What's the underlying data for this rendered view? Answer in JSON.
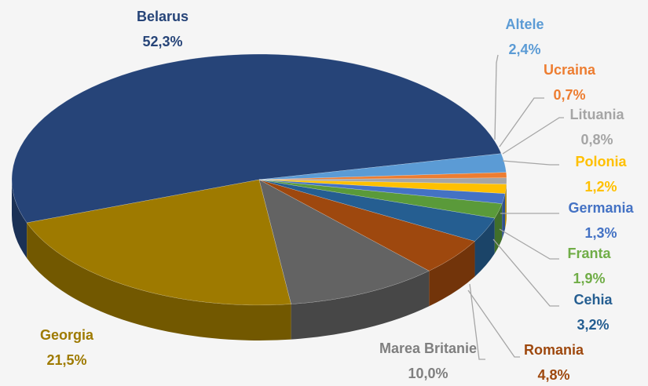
{
  "chart_data": {
    "type": "pie",
    "categories": [
      "Belarus",
      "Georgia",
      "Marea Britanie",
      "Romania",
      "Cehia",
      "Franta",
      "Germania",
      "Polonia",
      "Lituania",
      "Ucraina",
      "Altele"
    ],
    "values": [
      52.3,
      21.5,
      10.0,
      4.8,
      3.2,
      1.9,
      1.3,
      1.2,
      0.8,
      0.7,
      2.4
    ],
    "value_labels": [
      "52,3%",
      "21,5%",
      "10,0%",
      "4,8%",
      "3,2%",
      "1,9%",
      "1,3%",
      "1,2%",
      "0,8%",
      "0,7%",
      "2,4%"
    ],
    "colors": [
      "#264478",
      "#9e7a00",
      "#636363",
      "#9e480e",
      "#255e91",
      "#5a9a3a",
      "#4472c4",
      "#ffc000",
      "#a5a5a5",
      "#ed7d31",
      "#5b9bd5"
    ],
    "label_colors": [
      "#264478",
      "#9e7a00",
      "#7f7f7f",
      "#9e480e",
      "#255e91",
      "#70ad47",
      "#4472c4",
      "#ffc000",
      "#a5a5a5",
      "#ed7d31",
      "#5b9bd5"
    ]
  }
}
